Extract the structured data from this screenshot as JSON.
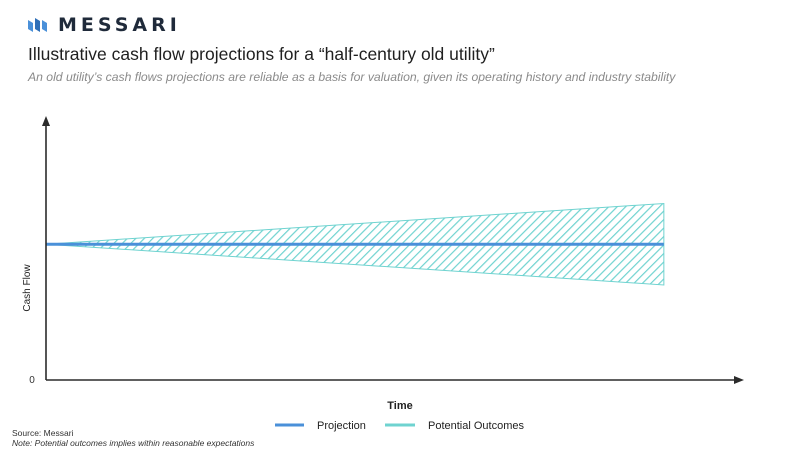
{
  "brand": {
    "name": "MESSARI"
  },
  "header": {
    "title": "Illustrative cash flow projections for a “half-century old utility”",
    "subtitle": "An old utility’s cash flows projections are reliable as a basis for valuation, given its operating history and industry stability"
  },
  "footer": {
    "source": "Source: Messari",
    "note": "Note: Potential outcomes  implies within reasonable expectations"
  },
  "colors": {
    "projection": "#4a90d9",
    "outcomes": "#6fd3d0",
    "axis": "#2b2b2b"
  },
  "chart_data": {
    "type": "area",
    "xlabel": "Time",
    "ylabel": "Cash Flow",
    "y_tick_labels": [
      "0"
    ],
    "x": [
      0,
      1
    ],
    "series": [
      {
        "name": "Projection",
        "values": [
          1.0,
          1.0
        ]
      },
      {
        "name": "Potential Outcomes",
        "lower": [
          1.0,
          0.7
        ],
        "upper": [
          1.0,
          1.3
        ]
      }
    ],
    "ylim": [
      0,
      1.9
    ],
    "xlim": [
      0,
      1.12
    ],
    "legend": "bottom-center",
    "grid": false
  }
}
